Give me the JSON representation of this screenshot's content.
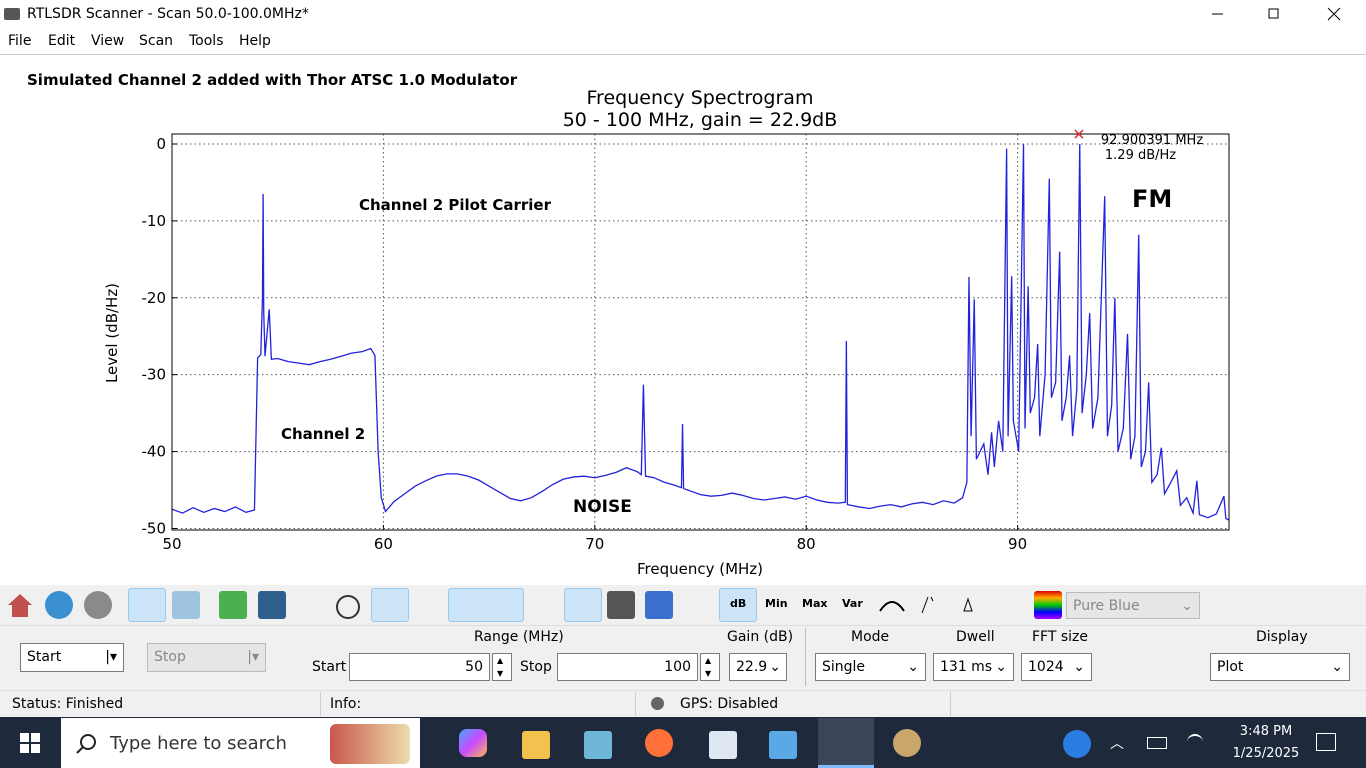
{
  "window": {
    "title": "RTLSDR Scanner - Scan 50.0-100.0MHz*"
  },
  "menu": [
    "File",
    "Edit",
    "View",
    "Scan",
    "Tools",
    "Help"
  ],
  "toolbar": {
    "labels": [
      "dB",
      "Min",
      "Max",
      "Var"
    ],
    "colormap": "Pure Blue"
  },
  "controls": {
    "start_button": "Start",
    "stop_button": "Stop",
    "range_label": "Range (MHz)",
    "start_label": "Start",
    "start_value": 50,
    "stop_label": "Stop",
    "stop_value": 100,
    "gain_label": "Gain (dB)",
    "gain_value": 22.9,
    "mode_label": "Mode",
    "mode_value": "Single",
    "dwell_label": "Dwell",
    "dwell_value": "131 ms",
    "fft_label": "FFT size",
    "fft_value": 1024,
    "display_label": "Display",
    "display_value": "Plot"
  },
  "status": {
    "status": "Status: Finished",
    "info": "Info:",
    "gps": "GPS: Disabled"
  },
  "taskbar": {
    "search": "Type here to search",
    "time": "3:48 PM",
    "date": "1/25/2025"
  },
  "chart_data": {
    "type": "line",
    "title": "Frequency Spectrogram",
    "subtitle": "50 - 100 MHz, gain = 22.9dB",
    "xlabel": "Frequency (MHz)",
    "ylabel": "Level (dB/Hz)",
    "color": "#2222dd",
    "grid": true,
    "xlim": [
      50,
      100
    ],
    "ylim": [
      -50.2,
      1.3
    ],
    "xticks": [
      50,
      60,
      70,
      80,
      90
    ],
    "yticks": [
      0,
      -10,
      -20,
      -30,
      -40,
      -50
    ],
    "annotations": [
      "Simulated Channel 2 added with Thor ATSC 1.0 Modulator",
      "Channel 2 Pilot Carrier",
      "Channel 2",
      "NOISE",
      "FM"
    ],
    "marker": {
      "x": 92.900391,
      "y": 1.29,
      "color": "#e03030",
      "value_labels": [
        "92.900391 MHz",
        "1.29 dB/Hz"
      ]
    },
    "x": [
      50,
      50.5,
      51,
      51.5,
      52,
      52.5,
      53,
      53.5,
      53.9,
      54.05,
      54.2,
      54.28,
      54.31,
      54.34,
      54.4,
      54.6,
      54.7,
      55,
      55.5,
      56,
      56.5,
      57,
      57.5,
      58,
      58.5,
      59,
      59.4,
      59.6,
      59.75,
      59.9,
      60.1,
      60.5,
      61,
      61.5,
      62,
      62.5,
      63,
      63.5,
      64,
      64.5,
      65,
      65.5,
      66,
      66.5,
      67,
      67.5,
      68,
      68.5,
      69,
      69.5,
      70,
      70.5,
      71,
      71.5,
      72,
      72.2,
      72.3,
      72.4,
      72.8,
      73.3,
      73.8,
      74.1,
      74.15,
      74.2,
      74.6,
      75,
      75.5,
      76,
      76.5,
      77,
      77.5,
      78,
      78.5,
      79,
      79.5,
      80,
      80.5,
      81,
      81.5,
      81.85,
      81.9,
      81.95,
      82.5,
      83,
      83.5,
      84,
      84.5,
      85,
      85.5,
      86,
      86.5,
      87,
      87.4,
      87.6,
      87.7,
      87.8,
      87.95,
      88.05,
      88.4,
      88.6,
      88.77,
      88.9,
      89.1,
      89.3,
      89.48,
      89.55,
      89.72,
      89.8,
      90.05,
      90.28,
      90.35,
      90.5,
      90.6,
      90.8,
      90.95,
      91.05,
      91.3,
      91.5,
      91.6,
      91.8,
      91.99,
      92.1,
      92.3,
      92.46,
      92.6,
      92.8,
      92.94,
      93.05,
      93.25,
      93.41,
      93.55,
      93.8,
      94.12,
      94.25,
      94.45,
      94.6,
      94.75,
      95,
      95.2,
      95.35,
      95.55,
      95.73,
      95.85,
      96.05,
      96.2,
      96.35,
      96.6,
      96.8,
      96.95,
      97.25,
      97.53,
      97.7,
      98,
      98.3,
      98.48,
      98.6,
      99,
      99.4,
      99.76,
      99.85,
      100
    ],
    "values": [
      -47.5,
      -48,
      -47.3,
      -47.9,
      -47.4,
      -47.8,
      -47.2,
      -47.9,
      -47.6,
      -27.8,
      -27.4,
      -20,
      -6.5,
      -22,
      -27.6,
      -21.5,
      -28,
      -27.9,
      -28.3,
      -28.5,
      -28.7,
      -28.3,
      -28,
      -27.6,
      -27.2,
      -27,
      -26.6,
      -27.5,
      -40,
      -46,
      -47.8,
      -46.5,
      -45.5,
      -44.5,
      -43.8,
      -43.2,
      -42.9,
      -42.9,
      -43.2,
      -43.7,
      -44.5,
      -45.3,
      -46.1,
      -46.4,
      -46,
      -45.2,
      -44.3,
      -43.6,
      -43.3,
      -43.2,
      -43.4,
      -43.1,
      -42.7,
      -42.1,
      -42.6,
      -43,
      -31.3,
      -43.2,
      -43.4,
      -44,
      -44.4,
      -44.7,
      -36.4,
      -44.8,
      -45.2,
      -45.6,
      -45.8,
      -45.7,
      -45.4,
      -45.7,
      -46.1,
      -46.3,
      -46.1,
      -45.9,
      -46.2,
      -45.8,
      -46.3,
      -46.6,
      -46.7,
      -46.6,
      -25.6,
      -46.9,
      -47.2,
      -47.4,
      -47.1,
      -46.9,
      -47.2,
      -46.8,
      -46.6,
      -46.9,
      -46.4,
      -46.7,
      -46,
      -44,
      -17.3,
      -38,
      -20.2,
      -41,
      -39,
      -43,
      -37.5,
      -42,
      -36,
      -40,
      -0.6,
      -38,
      -17.2,
      -36,
      -40,
      0,
      -37,
      -18.5,
      -35,
      -33,
      -26,
      -38,
      -30,
      -4.5,
      -33,
      -31,
      -14,
      -36,
      -33,
      -27.5,
      -38,
      -32,
      0,
      -35,
      -30,
      -22,
      -37,
      -33,
      -6.8,
      -38,
      -34,
      -20,
      -40,
      -37,
      -24.7,
      -41,
      -38,
      -11.8,
      -42,
      -40,
      -31,
      -44,
      -43,
      -39.5,
      -45.5,
      -44,
      -42.5,
      -47,
      -46,
      -48,
      -43.8,
      -48.2,
      -48.6,
      -48.1,
      -45.8,
      -48.7,
      -48.9
    ]
  }
}
